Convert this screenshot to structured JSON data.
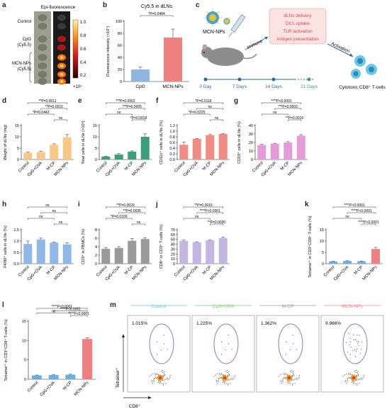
{
  "panel_labels": [
    "a",
    "b",
    "c",
    "d",
    "e",
    "f",
    "g",
    "h",
    "i",
    "j",
    "k",
    "l",
    "m"
  ],
  "panel_a": {
    "title": "Epi-fluorescence",
    "groups": [
      {
        "label": "Control",
        "lines": [
          "Control"
        ]
      },
      {
        "label": "CpG (Cy5.5)",
        "lines": [
          "CpG",
          "(Cy5.5)"
        ]
      },
      {
        "label": "MCN-NPs (Cy5.5)",
        "lines": [
          "MCN-NPs",
          "(Cy5.5)"
        ]
      }
    ],
    "colorbar_ticks": [
      "1.0",
      "0.8",
      "0.6",
      "0.4",
      "0.2"
    ],
    "colorbar_unit": "×10⁹"
  },
  "panel_c": {
    "nanoparticle_label": "MCN-NPs",
    "immune_label": "Immune",
    "activation_label": "Activation",
    "box_lines": [
      "dLNs delivery",
      "DCs uptake",
      "TLR activation",
      "Antigen presentation"
    ],
    "timeline": [
      "0 Day",
      "7 Days",
      "14 Days",
      "21 Days"
    ],
    "cells_label": "Cytotoxic CD8⁺ T-cells"
  },
  "panel_m": {
    "groups": [
      "Control",
      "CpG+OVA",
      "M-CP",
      "MCN-NPs"
    ],
    "percentages": [
      "1.015%",
      "1.225%",
      "1.362%",
      "9.966%"
    ],
    "header_colors": [
      "#5bc8d8",
      "#7cc87c",
      "#9a9a9a",
      "#f08080"
    ],
    "ylabel": "Tetramer⁺",
    "xlabel": "CD8⁺"
  },
  "chart_data": [
    {
      "id": "b",
      "type": "bar",
      "title": "Cy5.5 in dLNs",
      "ylabel": "Fluorescence intensity (×10⁷)",
      "categories": [
        "CpG",
        "MCN-NPs"
      ],
      "values": [
        20,
        73
      ],
      "errors": [
        4,
        14
      ],
      "ylim": [
        0,
        100
      ],
      "yticks": [
        "0",
        "20",
        "40",
        "60",
        "80",
        "100"
      ],
      "colors": [
        "#8fb5e0",
        "#f08080"
      ],
      "sig": [
        {
          "text": "*P=0.0484",
          "from": 0,
          "to": 1
        }
      ]
    },
    {
      "id": "d",
      "type": "bar",
      "ylabel": "Weight of dLNs (mg)",
      "categories": [
        "Control",
        "CpG+OVA",
        "M-CP",
        "MCN-NPs"
      ],
      "values": [
        3,
        3.3,
        6.5,
        9.8
      ],
      "errors": [
        0.3,
        0.4,
        0.4,
        1.2
      ],
      "ylim": [
        0,
        15
      ],
      "yticks": [
        "0",
        "5",
        "10",
        "15"
      ],
      "colors": [
        "#f9c784",
        "#f9c784",
        "#f9c784",
        "#f9c784"
      ],
      "sig": [
        {
          "text": "**P=0.0011",
          "from": 0,
          "to": 3
        },
        {
          "text": "**P=0.0016",
          "from": 1,
          "to": 3
        },
        {
          "text": "*P=0.0442",
          "from": 0,
          "to": 2
        },
        {
          "text": "ns",
          "from": 2,
          "to": 3
        }
      ]
    },
    {
      "id": "e",
      "type": "bar",
      "ylabel": "Total cells in dLNs (×10⁶)",
      "categories": [
        "Control",
        "CpG+OVA",
        "M-CP",
        "MCN-NPs"
      ],
      "values": [
        1.3,
        2.2,
        3.5,
        10
      ],
      "errors": [
        0.2,
        0.4,
        0.3,
        1.3
      ],
      "ylim": [
        0,
        15
      ],
      "yticks": [
        "0",
        "5",
        "10",
        "15"
      ],
      "colors": [
        "#3aa07a",
        "#3aa07a",
        "#3aa07a",
        "#3aa07a"
      ],
      "sig": [
        {
          "text": "***P=0.0002",
          "from": 0,
          "to": 3
        },
        {
          "text": "***P=0.0005",
          "from": 1,
          "to": 3
        },
        {
          "text": "ns",
          "from": 0,
          "to": 2
        },
        {
          "text": "*P=0.0018",
          "from": 2,
          "to": 3
        }
      ]
    },
    {
      "id": "f",
      "type": "bar",
      "ylabel": "CD11c⁺ cells in dLNs (%)",
      "categories": [
        "Control",
        "CpG+OVA",
        "M-CP",
        "MCN-NPs"
      ],
      "values": [
        0.52,
        0.73,
        0.86,
        0.9
      ],
      "errors": [
        0.1,
        0.01,
        0.02,
        0.02
      ],
      "ylim": [
        0,
        1.2
      ],
      "yticks": [
        "0.0",
        "0.2",
        "0.4",
        "0.6",
        "0.8",
        "1.0",
        "1.2"
      ],
      "colors": [
        "#f28b82",
        "#f28b82",
        "#f28b82",
        "#f28b82"
      ],
      "sig": [
        {
          "text": "*P=0.0118",
          "from": 0,
          "to": 3
        },
        {
          "text": "ns",
          "from": 1,
          "to": 3
        },
        {
          "text": "*P=0.0225",
          "from": 0,
          "to": 2
        },
        {
          "text": "ns",
          "from": 2,
          "to": 3
        }
      ]
    },
    {
      "id": "g",
      "type": "bar",
      "ylabel": "CD19⁺ cells in dLNs (%)",
      "categories": [
        "Control",
        "CpG+OVA",
        "M-CP",
        "MCN-NPs"
      ],
      "values": [
        17,
        18.5,
        20,
        28
      ],
      "errors": [
        0.8,
        0.6,
        1,
        1.2
      ],
      "ylim": [
        0,
        40
      ],
      "yticks": [
        "0",
        "10",
        "20",
        "30",
        "40"
      ],
      "colors": [
        "#e79ad8",
        "#e79ad8",
        "#e79ad8",
        "#e79ad8"
      ],
      "sig": [
        {
          "text": "****P<0.0001",
          "from": 0,
          "to": 3
        },
        {
          "text": "***P=0.0002",
          "from": 1,
          "to": 3
        },
        {
          "text": "ns",
          "from": 0,
          "to": 2
        },
        {
          "text": "**P=0.0010",
          "from": 2,
          "to": 3
        }
      ]
    },
    {
      "id": "h",
      "type": "bar",
      "ylabel": "F4/80⁺ cells in dLNs (%)",
      "categories": [
        "Control",
        "CpG+OVA",
        "M-CP",
        "MCN-NPs"
      ],
      "values": [
        0.87,
        1.07,
        0.93,
        0.85
      ],
      "errors": [
        0.13,
        0.06,
        0.03,
        0.07
      ],
      "ylim": [
        0,
        1.5
      ],
      "yticks": [
        "0.0",
        "0.5",
        "1.0",
        "1.5"
      ],
      "colors": [
        "#8fb8e6",
        "#8fb8e6",
        "#8fb8e6",
        "#8fb8e6"
      ],
      "sig": [
        {
          "text": "ns",
          "from": 0,
          "to": 3
        },
        {
          "text": "ns",
          "from": 1,
          "to": 3
        },
        {
          "text": "ns",
          "from": 0,
          "to": 2
        },
        {
          "text": "ns",
          "from": 2,
          "to": 3
        }
      ]
    },
    {
      "id": "i",
      "type": "bar",
      "ylabel": "CD3⁺ in PBMCs (%)",
      "categories": [
        "Control",
        "CpG+OVA",
        "M-CP",
        "MCN-NPs"
      ],
      "values": [
        3.5,
        3.7,
        5.4,
        5.8
      ],
      "errors": [
        0.3,
        0.3,
        0.5,
        0.3
      ],
      "ylim": [
        0,
        8
      ],
      "yticks": [
        "0",
        "2",
        "4",
        "6",
        "8"
      ],
      "colors": [
        "#9a9a9a",
        "#9a9a9a",
        "#9a9a9a",
        "#9a9a9a"
      ],
      "sig": [
        {
          "text": "**P=0.0029",
          "from": 0,
          "to": 3
        },
        {
          "text": "**P=0.0035",
          "from": 1,
          "to": 3
        },
        {
          "text": "*P=0.0100",
          "from": 0,
          "to": 2
        },
        {
          "text": "ns",
          "from": 2,
          "to": 3
        }
      ]
    },
    {
      "id": "j",
      "type": "bar",
      "ylabel": "CD8⁺ in CD3⁺ T-cells (%)",
      "categories": [
        "Control",
        "CpG+OVA",
        "M-CP",
        "MCN-NPs"
      ],
      "values": [
        47,
        44,
        48,
        53
      ],
      "errors": [
        1.5,
        1,
        1,
        1.5
      ],
      "ylim": [
        0,
        70
      ],
      "yticks": [
        "0",
        "10",
        "20",
        "30",
        "40",
        "50",
        "60",
        "70"
      ],
      "colors": [
        "#c3b6e3",
        "#c3b6e3",
        "#c3b6e3",
        "#c3b6e3"
      ],
      "sig": [
        {
          "text": "**P=0.0015",
          "from": 0,
          "to": 3
        },
        {
          "text": "****P<0.0001",
          "from": 1,
          "to": 3
        },
        {
          "text": "ns",
          "from": 0,
          "to": 2
        },
        {
          "text": "**P=0.0030",
          "from": 2,
          "to": 3
        }
      ]
    },
    {
      "id": "k",
      "type": "bar",
      "ylabel": "Tetramer⁺ in CD3⁺CD8⁺ T-cells (%)",
      "categories": [
        "Control",
        "CpG+OVA",
        "M-CP",
        "MCN-NPs"
      ],
      "values": [
        1,
        1.2,
        1.1,
        6.5
      ],
      "errors": [
        0.1,
        0.1,
        0.1,
        0.7
      ],
      "ylim": [
        0,
        15
      ],
      "yticks": [
        "0",
        "5",
        "10",
        "15"
      ],
      "colors": [
        "#6cb0e2",
        "#6cb0e2",
        "#6cb0e2",
        "#f08080"
      ],
      "sig": [
        {
          "text": "****P<0.0001",
          "from": 0,
          "to": 3
        },
        {
          "text": "****P<0.0001",
          "from": 1,
          "to": 3
        },
        {
          "text": "ns",
          "from": 0,
          "to": 2
        },
        {
          "text": "****P<0.0001",
          "from": 2,
          "to": 3
        }
      ]
    },
    {
      "id": "l",
      "type": "bar",
      "ylabel": "Tetramer⁺ in CD3⁺CD8⁺ T-cells (%)",
      "categories": [
        "Control",
        "CpG+OVA",
        "M-CP",
        "MCN-NPs"
      ],
      "values": [
        1,
        1.1,
        1.2,
        10.4
      ],
      "errors": [
        0.1,
        0.1,
        0.1,
        0.3
      ],
      "ylim": [
        0,
        15
      ],
      "yticks": [
        "0",
        "5",
        "10",
        "15"
      ],
      "colors": [
        "#6cb0e2",
        "#6cb0e2",
        "#6cb0e2",
        "#f08080"
      ],
      "sig": [
        {
          "text": "****P<0.0001",
          "from": 0,
          "to": 3
        },
        {
          "text": "****P<0.0001",
          "from": 1,
          "to": 3
        },
        {
          "text": "ns",
          "from": 0,
          "to": 2
        },
        {
          "text": "****P<0.0001",
          "from": 2,
          "to": 3
        }
      ]
    }
  ]
}
